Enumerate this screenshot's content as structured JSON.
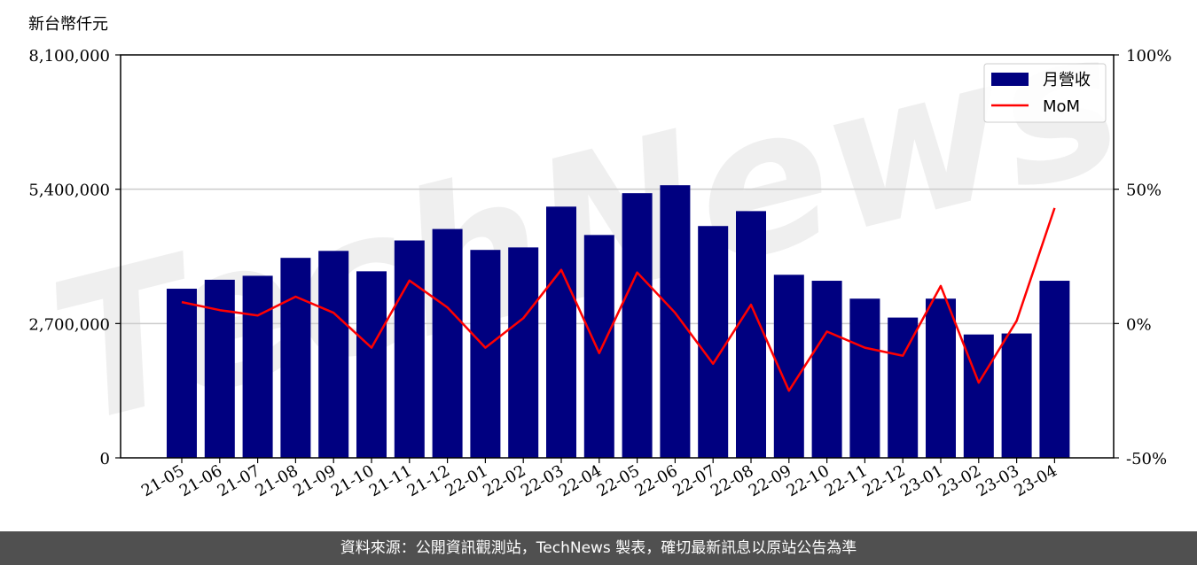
{
  "chart_data": {
    "type": "bar",
    "unit_label": "新台幣仟元",
    "categories": [
      "21-05",
      "21-06",
      "21-07",
      "21-08",
      "21-09",
      "21-10",
      "21-11",
      "21-12",
      "22-01",
      "22-02",
      "22-03",
      "22-04",
      "22-05",
      "22-06",
      "22-07",
      "22-08",
      "22-09",
      "22-10",
      "22-11",
      "22-12",
      "23-01",
      "23-02",
      "23-03",
      "23-04"
    ],
    "series": [
      {
        "name": "月營收",
        "type": "bar",
        "axis": "left",
        "color": "#000080",
        "values": [
          3400000,
          3580000,
          3660000,
          4020000,
          4160000,
          3750000,
          4370000,
          4600000,
          4180000,
          4230000,
          5050000,
          4480000,
          5320000,
          5480000,
          4660000,
          4960000,
          3680000,
          3560000,
          3200000,
          2820000,
          3200000,
          2480000,
          2500000,
          3560000
        ]
      },
      {
        "name": "MoM",
        "type": "line",
        "axis": "right",
        "color": "#ff0000",
        "values": [
          8,
          5,
          3,
          10,
          4,
          -9,
          16,
          6,
          -9,
          2,
          20,
          -11,
          19,
          4,
          -15,
          7,
          -25,
          -3,
          -9,
          -12,
          14,
          -22,
          1,
          43
        ]
      }
    ],
    "left_axis": {
      "min": 0,
      "max": 8100000,
      "ticks": [
        0,
        2700000,
        5400000,
        8100000
      ],
      "tick_labels": [
        "0",
        "2,700,000",
        "5,400,000",
        "8,100,000"
      ]
    },
    "right_axis": {
      "min": -50,
      "max": 100,
      "ticks": [
        -50,
        0,
        50,
        100
      ],
      "tick_labels": [
        "-50%",
        "0%",
        "50%",
        "100%"
      ]
    },
    "grid": "horizontal",
    "legend_position": "top-right",
    "watermark": "TechNews"
  },
  "footer": {
    "source_note": "資料來源：公開資訊觀測站，TechNews 製表，確切最新訊息以原站公告為準"
  }
}
